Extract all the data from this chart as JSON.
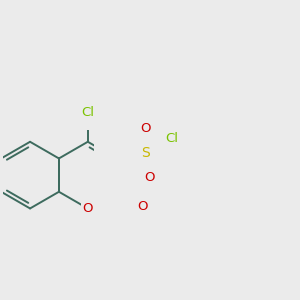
{
  "bg_color": "#ebebeb",
  "bond_color": "#3d6b5e",
  "bond_width": 1.4,
  "atom_colors": {
    "Cl": "#7ac200",
    "S": "#c8b800",
    "O": "#cc0000"
  },
  "font_size": 9.5,
  "fig_size": [
    3.0,
    3.0
  ],
  "dpi": 100
}
